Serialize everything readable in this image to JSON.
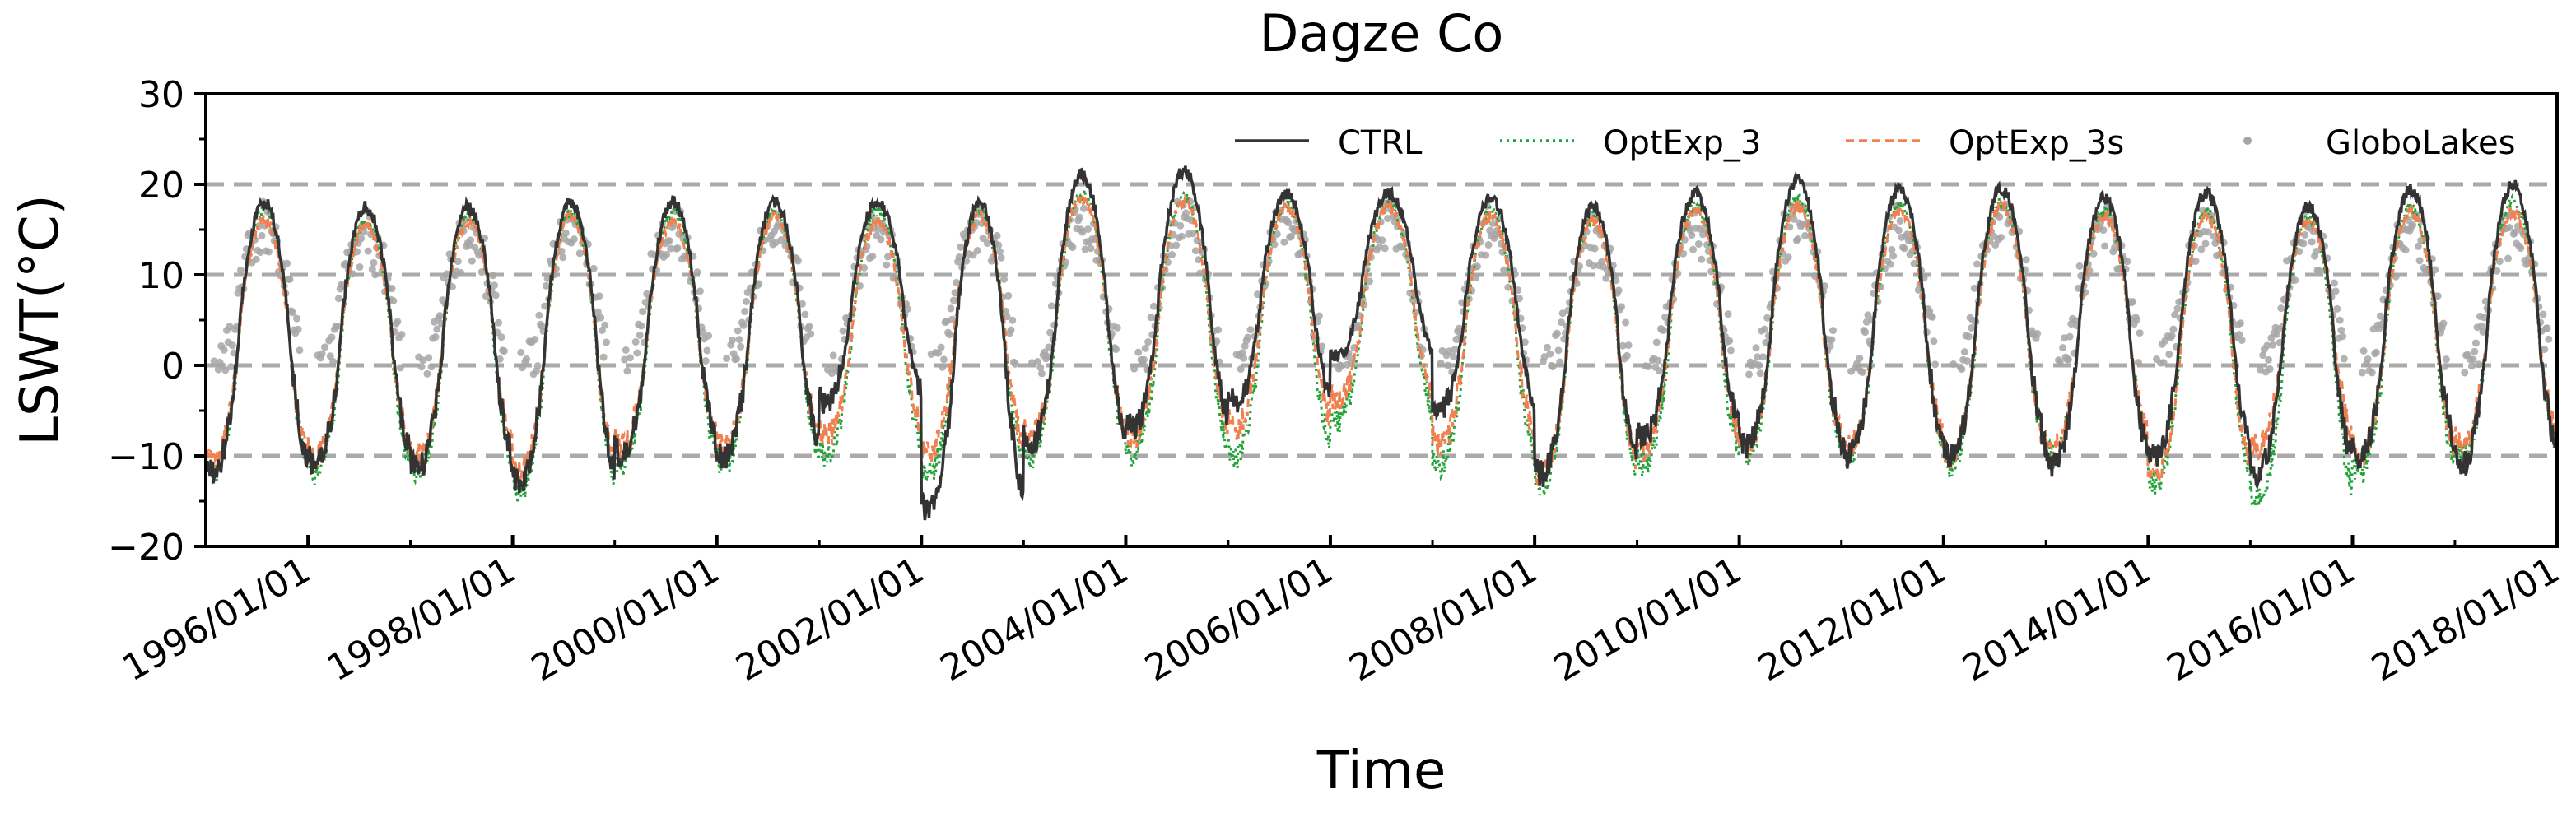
{
  "chart_data": {
    "type": "line",
    "title": "Dagze Co",
    "xlabel": "Time",
    "ylabel": "LSWT(°C)",
    "ylim": [
      -20,
      30
    ],
    "xlim": [
      "1995-01-01",
      "2018-01-01"
    ],
    "y_ticks": [
      -20,
      -10,
      0,
      10,
      20,
      30
    ],
    "y_tick_labels": [
      "−20",
      "−10",
      "0",
      "10",
      "20",
      "30"
    ],
    "x_tick_labels": [
      "1996/01/01",
      "1998/01/01",
      "2000/01/01",
      "2002/01/01",
      "2004/01/01",
      "2006/01/01",
      "2008/01/01",
      "2010/01/01",
      "2012/01/01",
      "2014/01/01",
      "2016/01/01",
      "2018/01/01"
    ],
    "x_tick_dates": [
      "1996-01-01",
      "1998-01-01",
      "2000-01-01",
      "2002-01-01",
      "2004-01-01",
      "2006-01-01",
      "2008-01-01",
      "2010-01-01",
      "2012-01-01",
      "2014-01-01",
      "2016-01-01",
      "2018-01-01"
    ],
    "gridlines": [
      -10,
      0,
      10,
      20
    ],
    "legend_position": "top-right",
    "years": [
      1995,
      1996,
      1997,
      1998,
      1999,
      2000,
      2001,
      2002,
      2003,
      2004,
      2005,
      2006,
      2007,
      2008,
      2009,
      2010,
      2011,
      2012,
      2013,
      2014,
      2015,
      2016,
      2017
    ],
    "series": [
      {
        "name": "CTRL",
        "style": "solid",
        "color": "#333333",
        "annual_max": [
          18,
          17.5,
          17.5,
          18,
          18,
          18,
          18,
          18,
          21,
          21.5,
          19,
          19,
          18.5,
          17.5,
          19,
          20.5,
          19.5,
          19.5,
          18.5,
          19,
          17.5,
          19.5,
          20
        ],
        "annual_min": [
          -12,
          -11,
          -11.5,
          -13,
          -10,
          -10,
          -4,
          -16,
          -9,
          -7,
          -4,
          1,
          -5,
          -12,
          -8,
          -9,
          -10,
          -10,
          -11,
          -10,
          -12,
          -10,
          -11
        ]
      },
      {
        "name": "OptExp_3",
        "style": "dotted",
        "color": "#22a33a",
        "annual_max": [
          17,
          16,
          16.5,
          17,
          17,
          17,
          17,
          17,
          19,
          18.5,
          18,
          18,
          17,
          16.5,
          17.5,
          18.5,
          17.5,
          18,
          17,
          17,
          16.5,
          17.5,
          18
        ],
        "annual_min": [
          -12,
          -12,
          -12,
          -14,
          -11,
          -11,
          -10,
          -12,
          -10,
          -10,
          -10,
          -6,
          -11,
          -13,
          -11,
          -10,
          -10,
          -11,
          -10,
          -13,
          -15,
          -12,
          -10
        ]
      },
      {
        "name": "OptExp_3s",
        "style": "dashed",
        "color": "#f08050",
        "annual_max": [
          16,
          15.5,
          16,
          16.5,
          16,
          16.5,
          16,
          16.5,
          18.5,
          18,
          17.5,
          17.5,
          16.5,
          16,
          17,
          17.5,
          17,
          17.5,
          16.5,
          16.5,
          16,
          17,
          17
        ],
        "annual_min": [
          -11,
          -10,
          -10,
          -12,
          -9,
          -9,
          -8,
          -10,
          -8,
          -8,
          -7,
          -4,
          -9,
          -12,
          -9,
          -9,
          -9,
          -10,
          -9,
          -12,
          -9,
          -10,
          -9
        ]
      },
      {
        "name": "GloboLakes",
        "style": "points",
        "color": "#a6a6a6",
        "annual_max": [
          15,
          14,
          14,
          15,
          15,
          15,
          15,
          15,
          16,
          16,
          16,
          16,
          15,
          14,
          15,
          16,
          15,
          16,
          15,
          15,
          14,
          15,
          15
        ],
        "annual_min": [
          -1,
          -1,
          -1,
          -1,
          -1,
          -1,
          -1,
          -1,
          -1,
          -1,
          -1,
          -1,
          -1,
          -1,
          -1,
          -1,
          -1,
          -1,
          -1,
          -1,
          -1,
          -1,
          -1
        ]
      }
    ]
  }
}
